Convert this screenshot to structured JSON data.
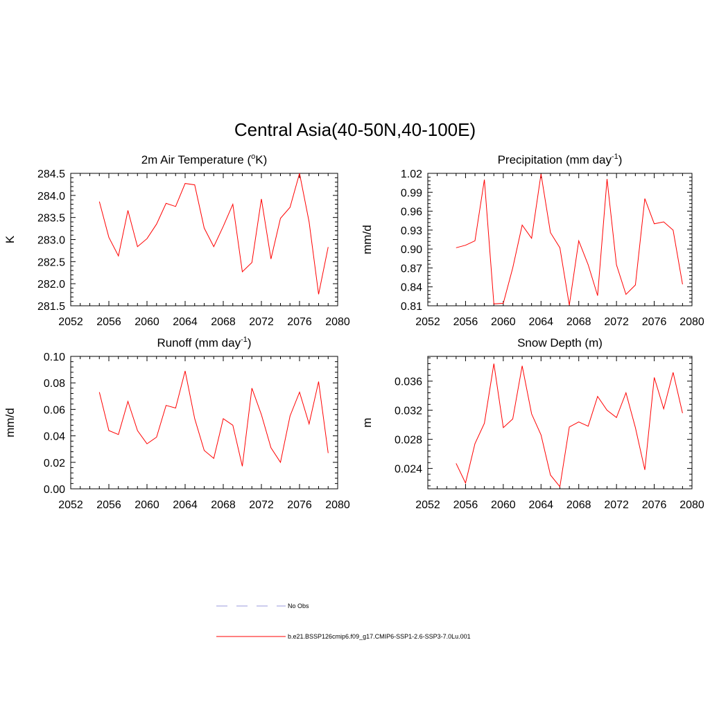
{
  "figure": {
    "title": "Central Asia(40-50N,40-100E)"
  },
  "legend": [
    {
      "label": "No Obs",
      "color": "#9999dd",
      "style": "dashed"
    },
    {
      "label": "b.e21.BSSP126cmip6.f09_g17.CMIP6-SSP1-2.6-SSP3-7.0Lu.001",
      "color": "#ff0000",
      "style": "solid"
    }
  ],
  "chart_data": [
    {
      "type": "line",
      "title": "2m Air Temperature (°K)",
      "title_parts": [
        "2m Air Temperature (",
        "o",
        "K)"
      ],
      "ylabel": "K",
      "xlim": [
        2052,
        2080
      ],
      "ylim": [
        281.5,
        284.5
      ],
      "xticks": [
        2052,
        2056,
        2060,
        2064,
        2068,
        2072,
        2076,
        2080
      ],
      "yticks": [
        "281.5",
        "282.0",
        "282.5",
        "283.0",
        "283.5",
        "284.0",
        "284.5"
      ],
      "x": [
        2055,
        2056,
        2057,
        2058,
        2059,
        2060,
        2061,
        2062,
        2063,
        2064,
        2065,
        2066,
        2067,
        2068,
        2069,
        2070,
        2071,
        2072,
        2073,
        2074,
        2075,
        2076,
        2077,
        2078,
        2079
      ],
      "series": [
        {
          "name": "b.e21.BSSP126cmip6.f09_g17.CMIP6-SSP1-2.6-SSP3-7.0Lu.001",
          "color": "#ff0000",
          "values": [
            283.86,
            283.05,
            282.63,
            283.66,
            282.84,
            283.02,
            283.35,
            283.82,
            283.75,
            284.27,
            284.24,
            283.26,
            282.84,
            283.3,
            283.8,
            282.27,
            282.48,
            283.92,
            282.56,
            283.48,
            283.73,
            284.5,
            283.4,
            281.76,
            282.83
          ]
        }
      ],
      "grid": false
    },
    {
      "type": "line",
      "title": "Precipitation (mm day-1)",
      "title_parts": [
        "Precipitation (mm day",
        "-1",
        ")"
      ],
      "ylabel": "mm/d",
      "xlim": [
        2052,
        2080
      ],
      "ylim": [
        0.81,
        1.02
      ],
      "xticks": [
        2052,
        2056,
        2060,
        2064,
        2068,
        2072,
        2076,
        2080
      ],
      "yticks": [
        "0.81",
        "0.84",
        "0.87",
        "0.90",
        "0.93",
        "0.96",
        "0.99",
        "1.02"
      ],
      "x": [
        2055,
        2056,
        2057,
        2058,
        2059,
        2060,
        2061,
        2062,
        2063,
        2064,
        2065,
        2066,
        2067,
        2068,
        2069,
        2070,
        2071,
        2072,
        2073,
        2074,
        2075,
        2076,
        2077,
        2078,
        2079
      ],
      "series": [
        {
          "name": "b.e21.BSSP126cmip6.f09_g17.CMIP6-SSP1-2.6-SSP3-7.0Lu.001",
          "color": "#ff0000",
          "values": [
            0.902,
            0.906,
            0.913,
            1.01,
            0.813,
            0.814,
            0.87,
            0.938,
            0.917,
            1.019,
            0.926,
            0.902,
            0.811,
            0.913,
            0.875,
            0.826,
            1.011,
            0.875,
            0.828,
            0.843,
            0.98,
            0.94,
            0.943,
            0.93,
            0.844
          ]
        }
      ],
      "grid": false
    },
    {
      "type": "line",
      "title": "Runoff (mm day-1)",
      "title_parts": [
        "Runoff (mm day",
        "-1",
        ")"
      ],
      "ylabel": "mm/d",
      "xlim": [
        2052,
        2080
      ],
      "ylim": [
        0.0,
        0.1
      ],
      "xticks": [
        2052,
        2056,
        2060,
        2064,
        2068,
        2072,
        2076,
        2080
      ],
      "yticks": [
        "0.00",
        "0.02",
        "0.04",
        "0.06",
        "0.08",
        "0.10"
      ],
      "x": [
        2055,
        2056,
        2057,
        2058,
        2059,
        2060,
        2061,
        2062,
        2063,
        2064,
        2065,
        2066,
        2067,
        2068,
        2069,
        2070,
        2071,
        2072,
        2073,
        2074,
        2075,
        2076,
        2077,
        2078,
        2079
      ],
      "series": [
        {
          "name": "b.e21.BSSP126cmip6.f09_g17.CMIP6-SSP1-2.6-SSP3-7.0Lu.001",
          "color": "#ff0000",
          "values": [
            0.073,
            0.044,
            0.041,
            0.066,
            0.044,
            0.034,
            0.039,
            0.063,
            0.061,
            0.089,
            0.053,
            0.029,
            0.023,
            0.053,
            0.048,
            0.017,
            0.076,
            0.056,
            0.031,
            0.02,
            0.055,
            0.073,
            0.049,
            0.081,
            0.027
          ]
        }
      ],
      "grid": false
    },
    {
      "type": "line",
      "title": "Snow Depth (m)",
      "title_parts": [
        "Snow Depth (m)"
      ],
      "ylabel": "m",
      "xlim": [
        2052,
        2080
      ],
      "ylim": [
        0.0212,
        0.0394
      ],
      "xticks": [
        2052,
        2056,
        2060,
        2064,
        2068,
        2072,
        2076,
        2080
      ],
      "yticks": [
        "0.024",
        "0.028",
        "0.032",
        "0.036"
      ],
      "x": [
        2055,
        2056,
        2057,
        2058,
        2059,
        2060,
        2061,
        2062,
        2063,
        2064,
        2065,
        2066,
        2067,
        2068,
        2069,
        2070,
        2071,
        2072,
        2073,
        2074,
        2075,
        2076,
        2077,
        2078,
        2079
      ],
      "series": [
        {
          "name": "b.e21.BSSP126cmip6.f09_g17.CMIP6-SSP1-2.6-SSP3-7.0Lu.001",
          "color": "#ff0000",
          "values": [
            0.0247,
            0.022,
            0.0274,
            0.0302,
            0.0384,
            0.0296,
            0.0308,
            0.0381,
            0.0315,
            0.0286,
            0.0231,
            0.0215,
            0.0297,
            0.0304,
            0.0298,
            0.0339,
            0.032,
            0.031,
            0.0344,
            0.0296,
            0.0238,
            0.0365,
            0.0322,
            0.0372,
            0.0316
          ]
        }
      ],
      "grid": false
    }
  ]
}
